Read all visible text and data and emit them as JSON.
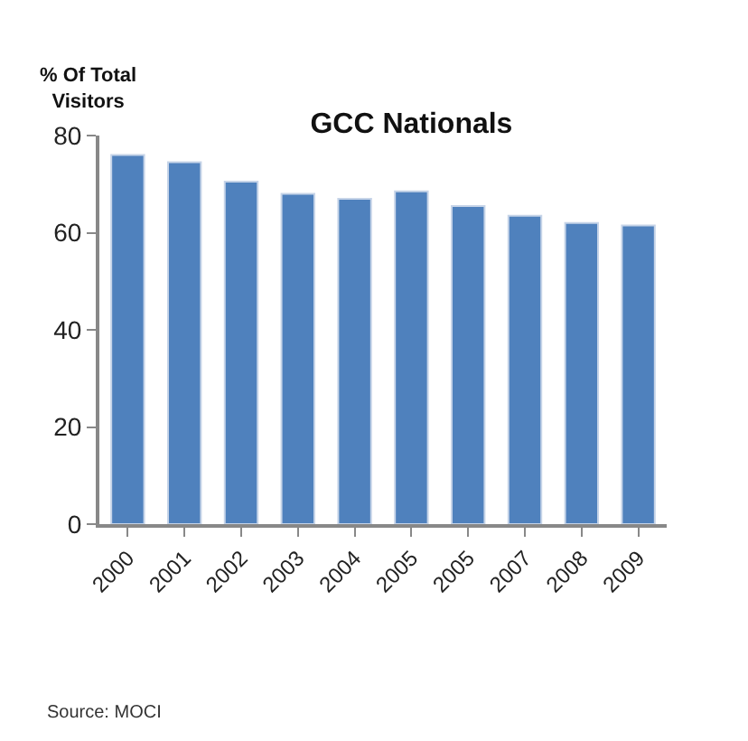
{
  "chart_data": {
    "type": "bar",
    "title": "GCC Nationals",
    "ylabel": "% Of Total\nVisitors",
    "categories": [
      "2000",
      "2001",
      "2002",
      "2003",
      "2004",
      "2005",
      "2005",
      "2007",
      "2008",
      "2009"
    ],
    "values": [
      76,
      74.5,
      70.5,
      68,
      67,
      68.5,
      65.5,
      63.5,
      62,
      61.5
    ],
    "color": "#4f81bd",
    "ylim": [
      0,
      80
    ],
    "yticks": [
      0,
      20,
      40,
      60,
      80
    ],
    "annotations": [
      "Source: MOCI"
    ]
  }
}
